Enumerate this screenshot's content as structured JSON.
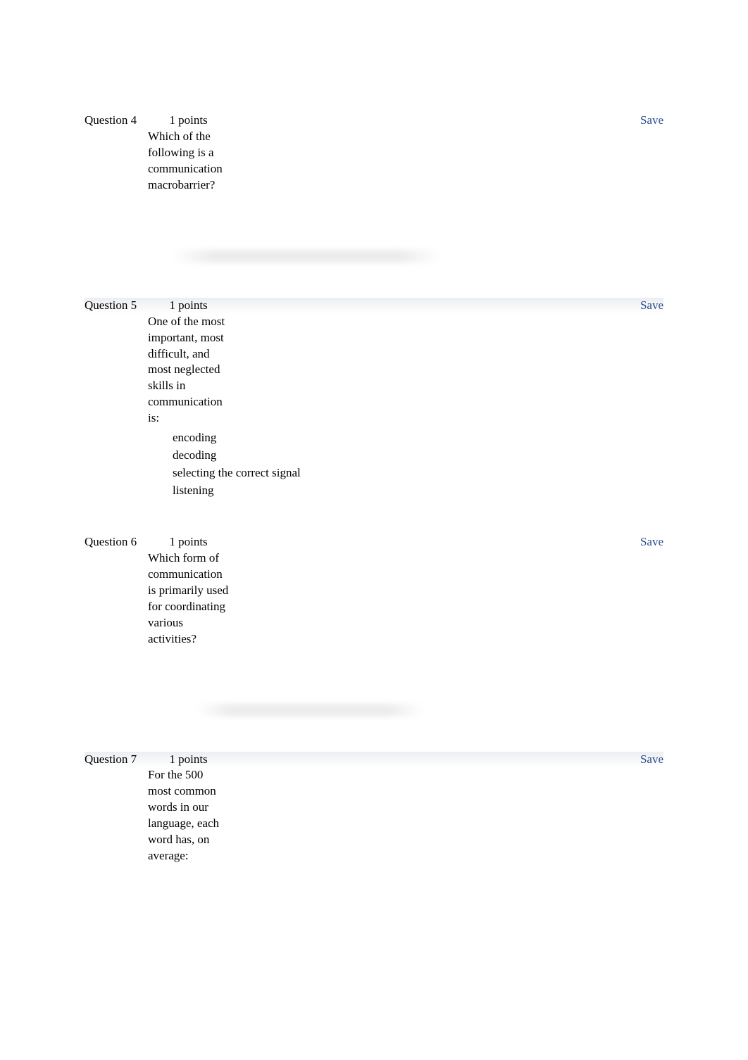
{
  "questions": [
    {
      "label": "Question 4",
      "points": "1 points",
      "save": "Save",
      "text": "Which of the following is a communication macrobarrier?",
      "options": [],
      "shaded": false,
      "blur": true,
      "blurVariant": false
    },
    {
      "label": "Question 5",
      "points": "1 points",
      "save": "Save",
      "text": "One of the most important, most difficult, and most neglected skills in communication is:",
      "options": [
        "encoding",
        "decoding",
        "selecting the correct signal",
        "listening"
      ],
      "shaded": true,
      "blur": false,
      "blurVariant": false
    },
    {
      "label": "Question 6",
      "points": "1 points",
      "save": "Save",
      "text": "Which form of communication is primarily used for coordinating various activities?",
      "options": [],
      "shaded": false,
      "blur": true,
      "blurVariant": true
    },
    {
      "label": "Question 7",
      "points": "1 points",
      "save": "Save",
      "text": "For the 500 most common words in our language, each word has, on average:",
      "options": [],
      "shaded": true,
      "blur": false,
      "blurVariant": false
    }
  ]
}
